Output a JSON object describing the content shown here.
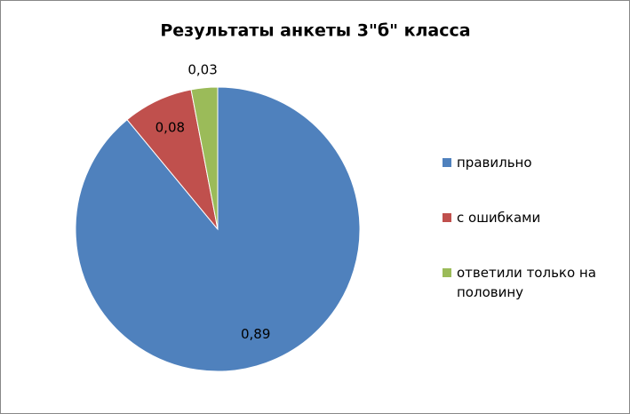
{
  "chart_data": {
    "type": "pie",
    "title": "Результаты анкеты 3\"б\" класса",
    "categories": [
      "правильно",
      "с ошибками",
      "ответили только на половину"
    ],
    "values": [
      0.89,
      0.08,
      0.03
    ],
    "value_labels": [
      "0,89",
      "0,08",
      "0,03"
    ],
    "colors": [
      "#4f81bd",
      "#c0504d",
      "#9bbb59"
    ],
    "legend": "right"
  }
}
